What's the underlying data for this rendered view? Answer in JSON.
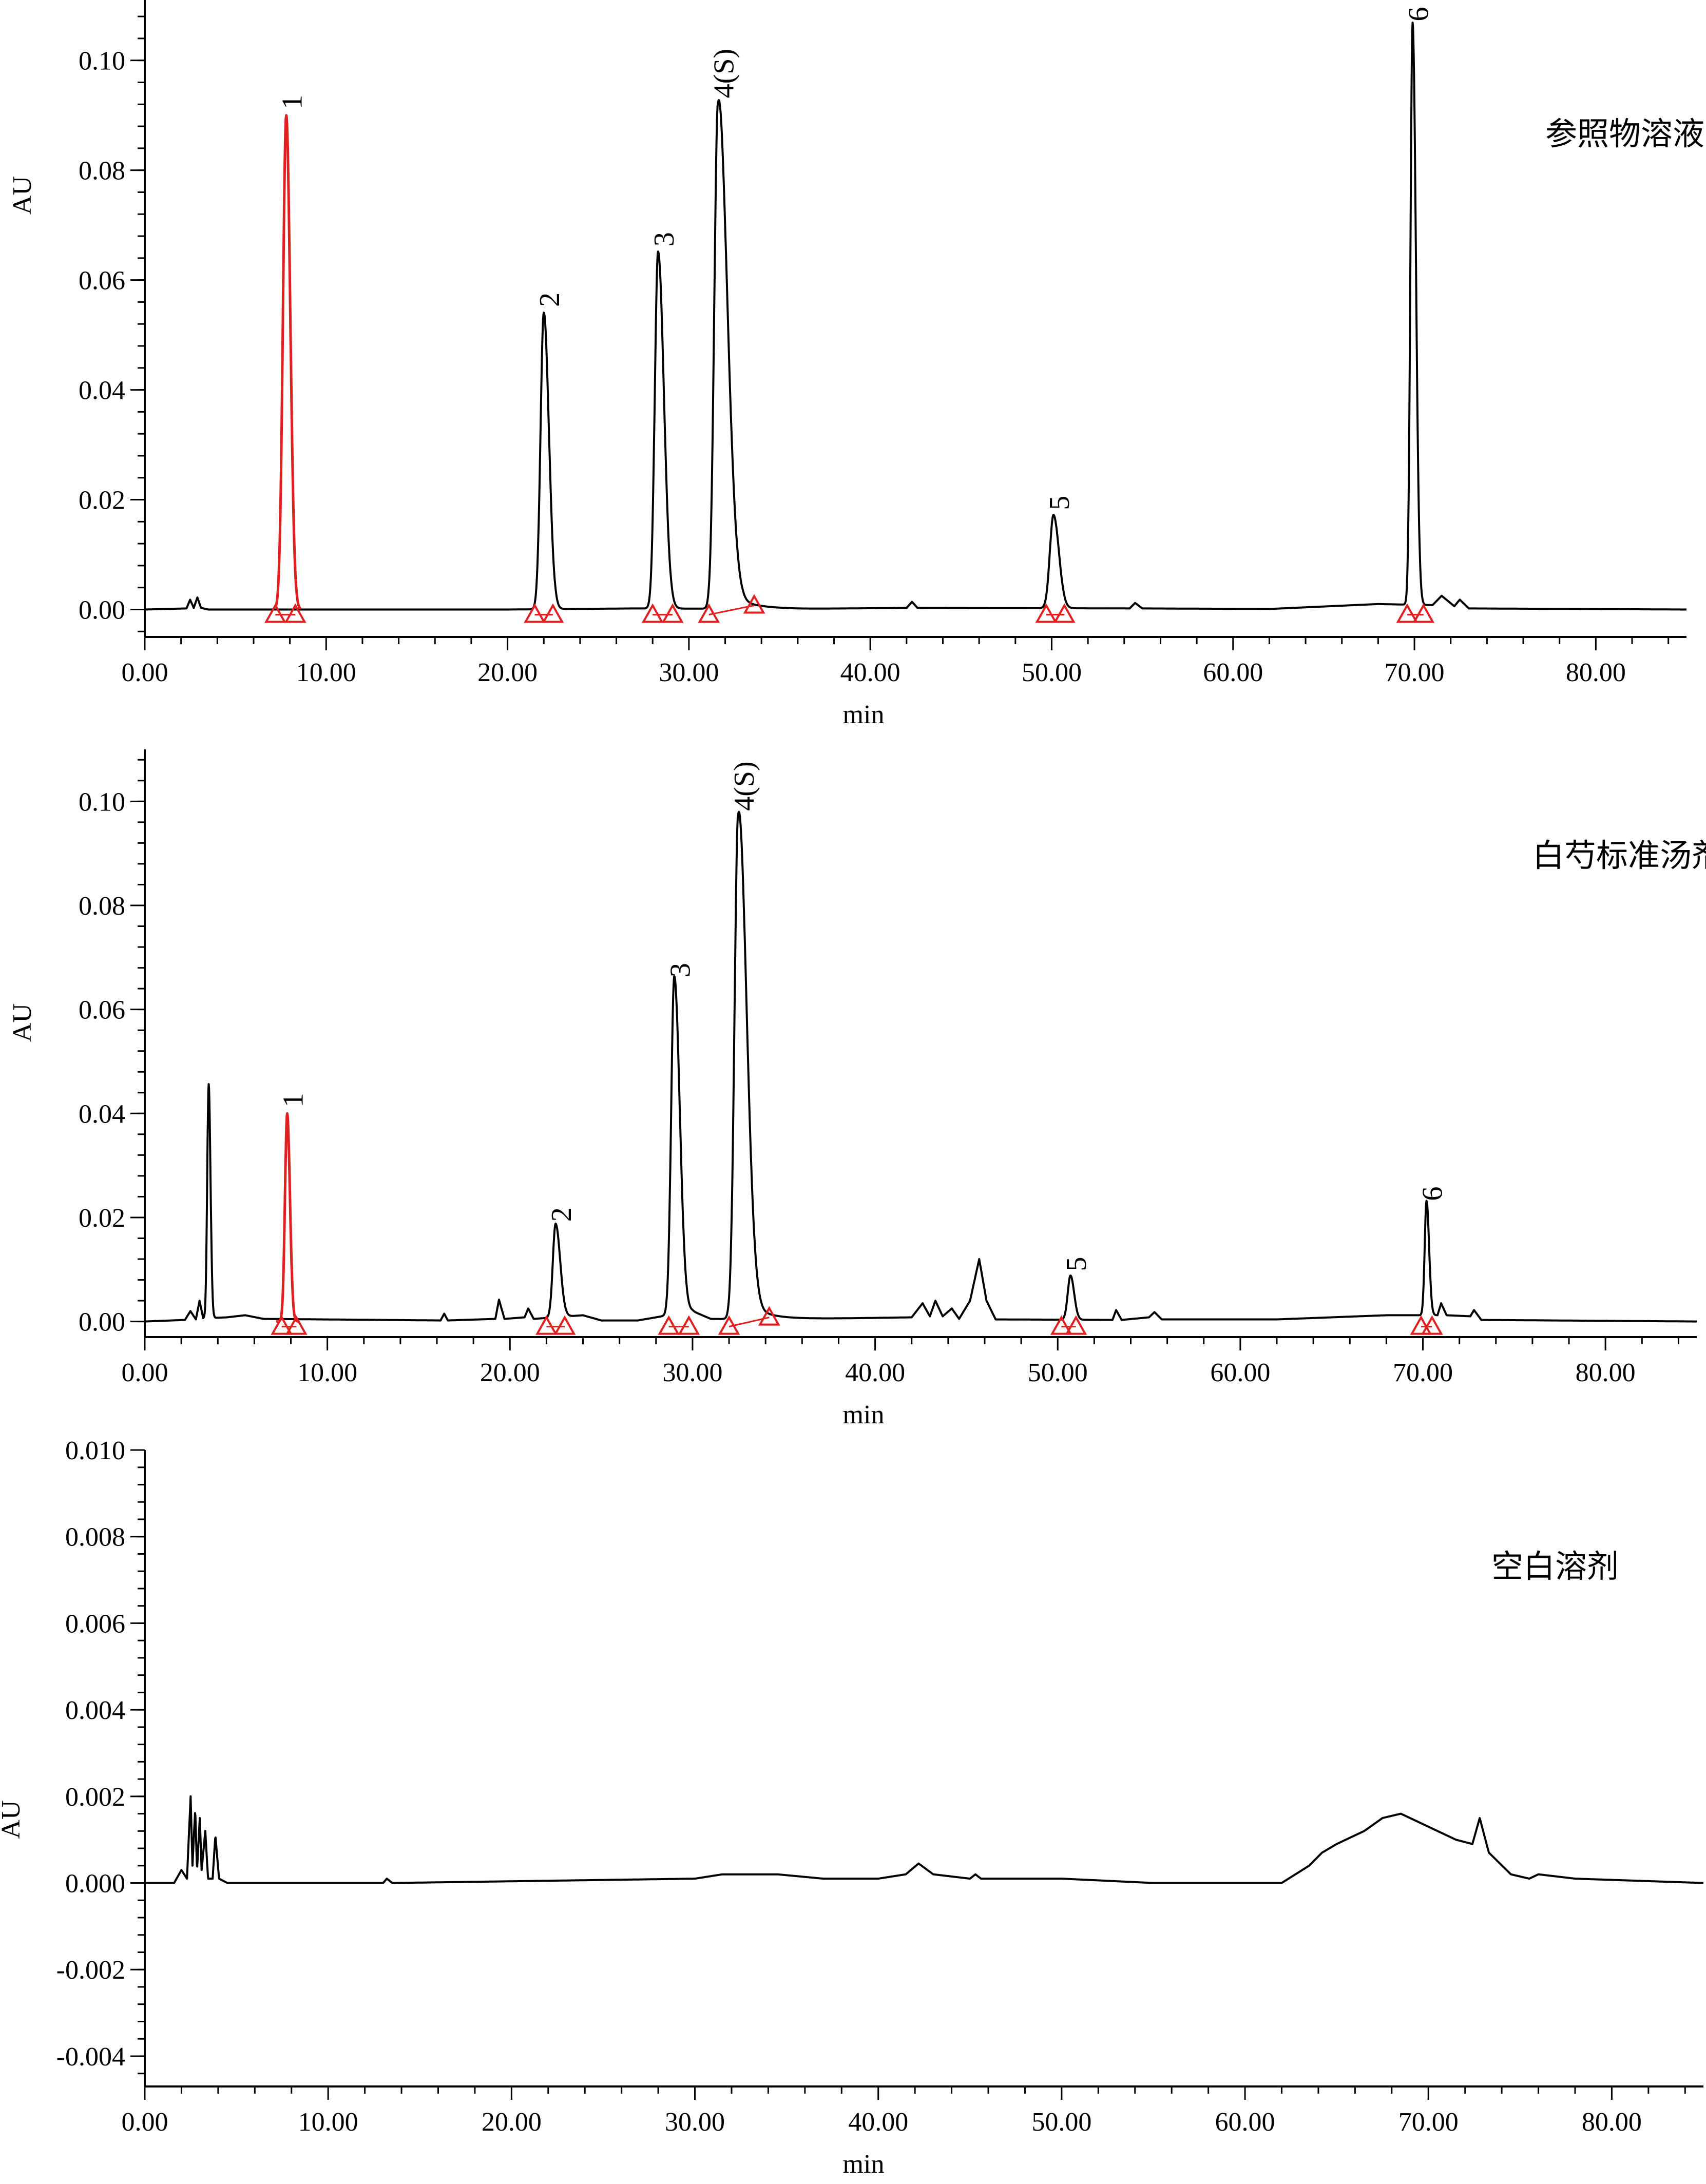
{
  "chart_data": [
    {
      "type": "line",
      "panel_label": "参照物溶液",
      "xlabel": "min",
      "ylabel": "AU",
      "xlim": [
        0,
        85
      ],
      "ylim": [
        -0.005,
        0.111
      ],
      "x_ticks": [
        "0.00",
        "10.00",
        "20.00",
        "30.00",
        "40.00",
        "50.00",
        "60.00",
        "70.00",
        "80.00"
      ],
      "y_ticks": [
        "0.00",
        "0.02",
        "0.04",
        "0.06",
        "0.08",
        "0.10"
      ],
      "y_tick_values": [
        0,
        0.02,
        0.04,
        0.06,
        0.08,
        0.1
      ],
      "series": [
        {
          "color": "#000000",
          "baseline": [
            [
              0,
              0
            ],
            [
              2.3,
              0.0002
            ],
            [
              2.5,
              0.0018
            ],
            [
              2.7,
              0.0003
            ],
            [
              2.9,
              0.0022
            ],
            [
              3.1,
              0.0003
            ],
            [
              3.5,
              0
            ],
            [
              20,
              0
            ],
            [
              27,
              0.0002
            ],
            [
              36,
              0.0001
            ],
            [
              42,
              0.0003
            ],
            [
              42.3,
              0.0014
            ],
            [
              42.6,
              0.0003
            ],
            [
              54.3,
              0.0002
            ],
            [
              54.6,
              0.0012
            ],
            [
              55,
              0.0002
            ],
            [
              62,
              0.0001
            ],
            [
              68,
              0.001
            ],
            [
              71,
              0.0008
            ],
            [
              71.5,
              0.0025
            ],
            [
              72.2,
              0.0006
            ],
            [
              72.5,
              0.0018
            ],
            [
              73,
              0.0002
            ],
            [
              85,
              0
            ]
          ],
          "peaks": [
            {
              "label": "2",
              "rt": 22.0,
              "height": 0.054,
              "w_left": 0.18,
              "w_right": 0.28
            },
            {
              "label": "3",
              "rt": 28.3,
              "height": 0.065,
              "w_left": 0.18,
              "w_right": 0.32
            },
            {
              "label": "4(S)",
              "rt": 31.6,
              "height": 0.092,
              "w_left": 0.2,
              "w_right": 0.5,
              "tail": 0.004
            },
            {
              "label": "5",
              "rt": 50.1,
              "height": 0.017,
              "w_left": 0.2,
              "w_right": 0.3
            },
            {
              "label": "6",
              "rt": 69.9,
              "height": 0.106,
              "w_left": 0.12,
              "w_right": 0.18
            }
          ]
        },
        {
          "color": "#e02020",
          "baseline": [
            [
              7.2,
              0
            ],
            [
              8.6,
              0
            ]
          ],
          "peaks": [
            {
              "label": "1",
              "rt": 7.8,
              "height": 0.09,
              "w_left": 0.18,
              "w_right": 0.22
            }
          ]
        }
      ],
      "integration_markers": [
        7.2,
        8.3,
        21.5,
        22.5,
        28.0,
        29.1,
        31.1,
        33.6,
        49.7,
        50.7,
        69.6,
        70.5
      ]
    },
    {
      "type": "line",
      "panel_label": "白芍标准汤剂供试品溶液",
      "xlabel": "min",
      "ylabel": "AU",
      "xlim": [
        0,
        85
      ],
      "ylim": [
        -0.003,
        0.11
      ],
      "x_ticks": [
        "0.00",
        "10.00",
        "20.00",
        "30.00",
        "40.00",
        "50.00",
        "60.00",
        "70.00",
        "80.00"
      ],
      "y_ticks": [
        "0.00",
        "0.02",
        "0.04",
        "0.06",
        "0.08",
        "0.10"
      ],
      "y_tick_values": [
        0,
        0.02,
        0.04,
        0.06,
        0.08,
        0.1
      ],
      "series": [
        {
          "color": "#000000",
          "baseline": [
            [
              0,
              0
            ],
            [
              2.2,
              0.0003
            ],
            [
              2.5,
              0.002
            ],
            [
              2.8,
              0.0004
            ],
            [
              3.0,
              0.004
            ],
            [
              3.2,
              0.0006
            ],
            [
              4.5,
              0.0008
            ],
            [
              5.5,
              0.0012
            ],
            [
              6.5,
              0.0005
            ],
            [
              16.2,
              0.0002
            ],
            [
              16.4,
              0.0015
            ],
            [
              16.6,
              0.0002
            ],
            [
              19.2,
              0.0005
            ],
            [
              19.4,
              0.0042
            ],
            [
              19.7,
              0.0005
            ],
            [
              20.8,
              0.0008
            ],
            [
              21.0,
              0.0025
            ],
            [
              21.3,
              0.0005
            ],
            [
              24,
              0.0012
            ],
            [
              25,
              0.0002
            ],
            [
              27,
              0.0002
            ],
            [
              30,
              0.002
            ],
            [
              31,
              0.0005
            ],
            [
              35,
              0.0004
            ],
            [
              42,
              0.0008
            ],
            [
              42.6,
              0.0035
            ],
            [
              43.0,
              0.001
            ],
            [
              43.3,
              0.004
            ],
            [
              43.7,
              0.001
            ],
            [
              44.2,
              0.0025
            ],
            [
              44.6,
              0.0005
            ],
            [
              45.2,
              0.004
            ],
            [
              45.7,
              0.012
            ],
            [
              46.1,
              0.004
            ],
            [
              46.6,
              0.0004
            ],
            [
              53.0,
              0.0003
            ],
            [
              53.2,
              0.0022
            ],
            [
              53.5,
              0.0003
            ],
            [
              55.0,
              0.0008
            ],
            [
              55.3,
              0.0018
            ],
            [
              55.7,
              0.0004
            ],
            [
              62,
              0.0004
            ],
            [
              68,
              0.0012
            ],
            [
              70.8,
              0.0012
            ],
            [
              71.0,
              0.0035
            ],
            [
              71.3,
              0.0012
            ],
            [
              72.6,
              0.001
            ],
            [
              72.8,
              0.0022
            ],
            [
              73.2,
              0.0003
            ],
            [
              85,
              0
            ]
          ],
          "peaks": [
            {
              "label": "",
              "rt": 3.5,
              "height": 0.045,
              "w_left": 0.08,
              "w_right": 0.1
            },
            {
              "label": "2",
              "rt": 22.5,
              "height": 0.018,
              "w_left": 0.15,
              "w_right": 0.25
            },
            {
              "label": "3",
              "rt": 29.0,
              "height": 0.065,
              "w_left": 0.17,
              "w_right": 0.3
            },
            {
              "label": "4(S)",
              "rt": 32.5,
              "height": 0.097,
              "w_left": 0.2,
              "w_right": 0.45,
              "tail": 0.004
            },
            {
              "label": "5",
              "rt": 50.7,
              "height": 0.0085,
              "w_left": 0.15,
              "w_right": 0.2
            },
            {
              "label": "6",
              "rt": 70.2,
              "height": 0.022,
              "w_left": 0.1,
              "w_right": 0.14
            }
          ]
        },
        {
          "color": "#e02020",
          "baseline": [
            [
              7.2,
              0
            ],
            [
              8.4,
              0
            ]
          ],
          "peaks": [
            {
              "label": "1",
              "rt": 7.8,
              "height": 0.04,
              "w_left": 0.12,
              "w_right": 0.15
            }
          ]
        }
      ],
      "integration_markers": [
        7.5,
        8.3,
        22.0,
        23.0,
        28.7,
        29.8,
        32.0,
        34.2,
        50.2,
        51.0,
        69.9,
        70.5
      ]
    },
    {
      "type": "line",
      "panel_label": "空白溶剂",
      "xlabel": "min",
      "ylabel": "AU",
      "xlim": [
        0,
        85
      ],
      "ylim": [
        -0.0047,
        0.01
      ],
      "x_ticks": [
        "0.00",
        "10.00",
        "20.00",
        "30.00",
        "40.00",
        "50.00",
        "60.00",
        "70.00",
        "80.00"
      ],
      "y_ticks": [
        "-0.004",
        "-0.002",
        "0.000",
        "0.002",
        "0.004",
        "0.006",
        "0.008",
        "0.010"
      ],
      "y_tick_values": [
        -0.004,
        -0.002,
        0,
        0.002,
        0.004,
        0.006,
        0.008,
        0.01
      ],
      "series": [
        {
          "color": "#000000",
          "baseline": [
            [
              0,
              0
            ],
            [
              1.6,
              0
            ],
            [
              2.0,
              0.0003
            ],
            [
              2.3,
              0.0001
            ],
            [
              2.5,
              0.002
            ],
            [
              2.6,
              0.0004
            ],
            [
              2.75,
              0.0017
            ],
            [
              2.85,
              0.0003
            ],
            [
              3.0,
              0.0015
            ],
            [
              3.1,
              0.0003
            ],
            [
              3.3,
              0.0012
            ],
            [
              3.45,
              0.0001
            ],
            [
              3.7,
              0.0001
            ],
            [
              3.85,
              0.0011
            ],
            [
              4.05,
              0.0001
            ],
            [
              4.5,
              0
            ],
            [
              13.0,
              0
            ],
            [
              13.2,
              0.0001
            ],
            [
              13.5,
              0
            ],
            [
              30,
              0.0001
            ],
            [
              31.5,
              0.0002
            ],
            [
              34.5,
              0.0002
            ],
            [
              37,
              0.0001
            ],
            [
              40.0,
              0.0001
            ],
            [
              41.5,
              0.0002
            ],
            [
              42.2,
              0.00045
            ],
            [
              43.0,
              0.0002
            ],
            [
              45.0,
              0.0001
            ],
            [
              45.3,
              0.0002
            ],
            [
              45.6,
              0.0001
            ],
            [
              50,
              0.0001
            ],
            [
              55,
              0
            ],
            [
              62,
              0
            ],
            [
              63.5,
              0.0004
            ],
            [
              64.2,
              0.0007
            ],
            [
              65.0,
              0.0009
            ],
            [
              66.5,
              0.0012
            ],
            [
              67.5,
              0.0015
            ],
            [
              68.5,
              0.0016
            ],
            [
              69.5,
              0.0014
            ],
            [
              70.5,
              0.0012
            ],
            [
              71.5,
              0.001
            ],
            [
              72.4,
              0.0009
            ],
            [
              72.8,
              0.0015
            ],
            [
              73.3,
              0.0007
            ],
            [
              74.5,
              0.0002
            ],
            [
              75.5,
              0.0001
            ],
            [
              76.0,
              0.0002
            ],
            [
              78,
              0.0001
            ],
            [
              85,
              0
            ]
          ],
          "peaks": []
        }
      ],
      "integration_markers": []
    }
  ]
}
